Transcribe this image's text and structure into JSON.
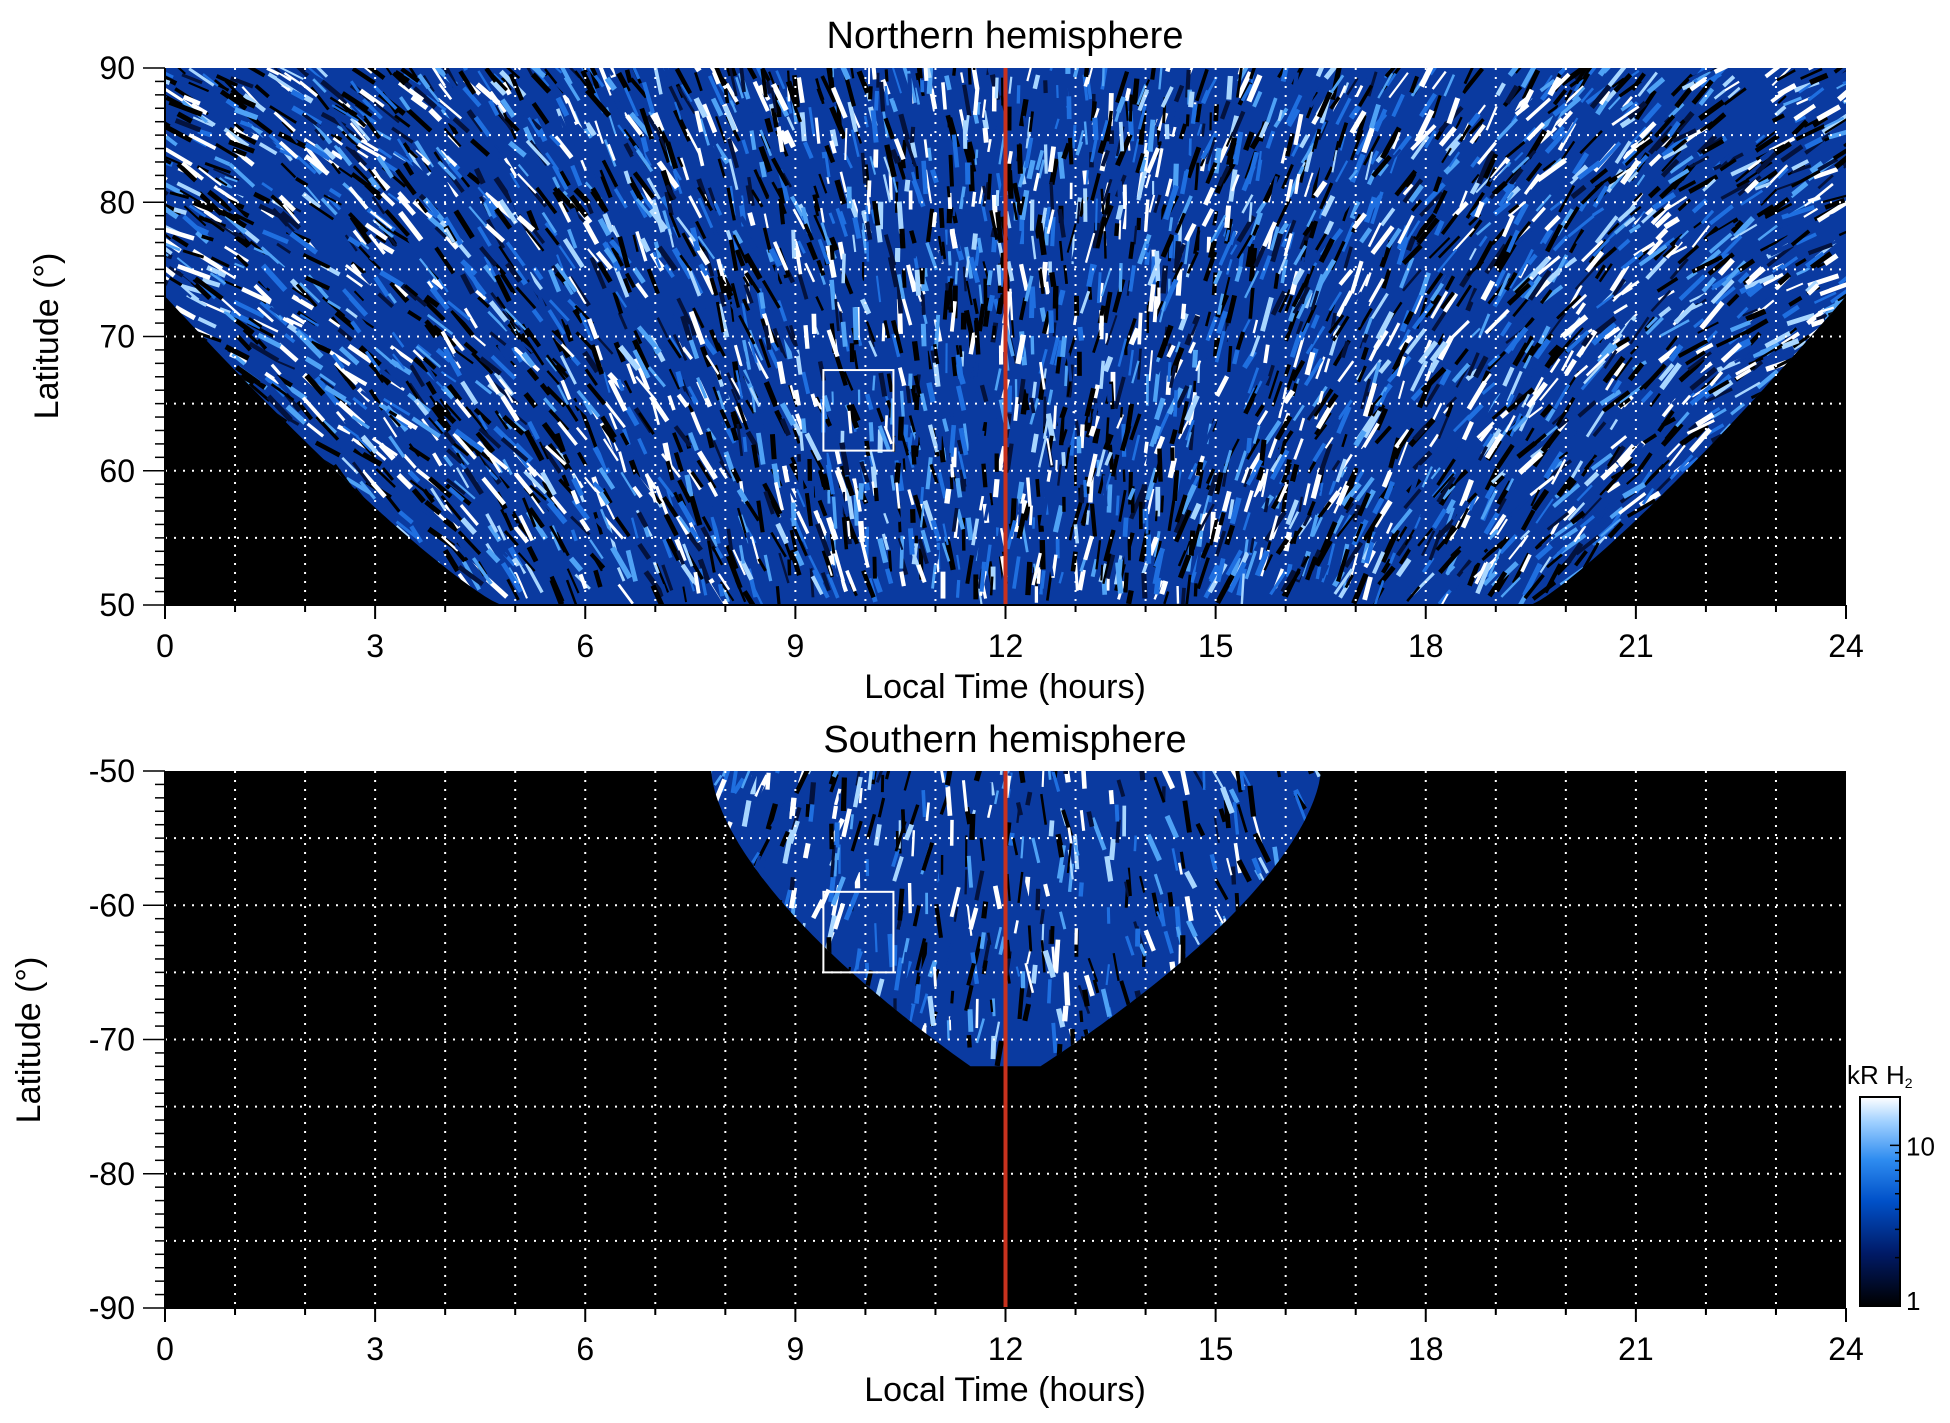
{
  "chart_data": [
    {
      "type": "heatmap",
      "title": "Northern hemisphere",
      "xlabel": "Local Time (hours)",
      "ylabel": "Latitude (°)",
      "xlim": [
        0,
        24
      ],
      "ylim": [
        50,
        90
      ],
      "xticks": [
        "0",
        "3",
        "6",
        "9",
        "12",
        "15",
        "18",
        "21",
        "24"
      ],
      "yticks": [
        "50",
        "60",
        "70",
        "80",
        "90"
      ],
      "grid": true,
      "grid_x_step_hours": 1,
      "grid_y_step_deg": 5,
      "coverage": "local time 0–24 h at latitude 73–90°, narrowing to about 4.8–19.5 h at 50°",
      "noon_marker_local_time": 12,
      "noon_marker_color": "#c8321e",
      "highlight_box": {
        "x": [
          9.4,
          10.4
        ],
        "y": [
          61.5,
          67.5
        ],
        "color": "#ffffff"
      },
      "background_color": "#000000"
    },
    {
      "type": "heatmap",
      "title": "Southern hemisphere",
      "xlabel": "Local Time (hours)",
      "ylabel": "Latitude (°)",
      "xlim": [
        0,
        24
      ],
      "ylim": [
        -90,
        -50
      ],
      "xticks": [
        "0",
        "3",
        "6",
        "9",
        "12",
        "15",
        "18",
        "21",
        "24"
      ],
      "yticks": [
        "-90",
        "-80",
        "-70",
        "-60",
        "-50"
      ],
      "grid": true,
      "grid_x_step_hours": 1,
      "grid_y_step_deg": 5,
      "coverage": "local time about 7.8–16.5 h at -50°, narrowing to about 11.5–12.5 h at -72°",
      "noon_marker_local_time": 12,
      "noon_marker_color": "#c8321e",
      "highlight_box": {
        "x": [
          9.4,
          10.4
        ],
        "y": [
          -65,
          -59
        ],
        "color": "#ffffff"
      },
      "background_color": "#000000"
    }
  ],
  "colorbar": {
    "label_main": "kR H",
    "label_sub": "2",
    "scale": "log",
    "range": [
      1,
      20
    ],
    "ticks": [
      "1",
      "10"
    ],
    "colors": [
      "#000000",
      "#001a66",
      "#0050c8",
      "#2e8cf0",
      "#9fd0ff",
      "#ffffff"
    ]
  }
}
